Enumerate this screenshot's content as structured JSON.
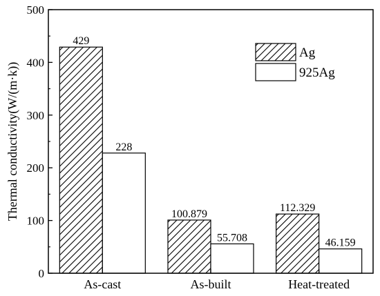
{
  "chart_data": {
    "type": "bar",
    "categories": [
      "As-cast",
      "As-built",
      "Heat-treated"
    ],
    "series": [
      {
        "name": "Ag",
        "values": [
          429,
          100.879,
          112.329
        ],
        "labels": [
          "429",
          "100.879",
          "112.329"
        ],
        "fill": "hatched"
      },
      {
        "name": "925Ag",
        "values": [
          228,
          55.708,
          46.159
        ],
        "labels": [
          "228",
          "55.708",
          "46.159"
        ],
        "fill": "white"
      }
    ],
    "title": "",
    "xlabel": "",
    "ylabel": "Thermal conductivity(W/(m·k))",
    "ylim": [
      0,
      500
    ],
    "yticks": [
      0,
      100,
      200,
      300,
      400,
      500
    ],
    "ytick_labels": [
      "0",
      "100",
      "200",
      "300",
      "400",
      "500"
    ],
    "grid": false,
    "legend_position": "top-right",
    "colors": {
      "edge": "#000000",
      "background": "#ffffff"
    }
  }
}
